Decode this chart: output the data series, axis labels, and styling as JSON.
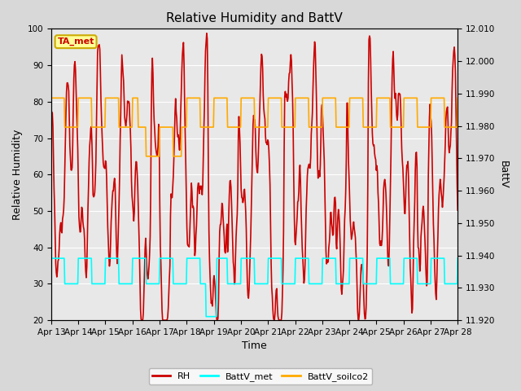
{
  "title": "Relative Humidity and BattV",
  "xlabel": "Time",
  "ylabel_left": "Relative Humidity",
  "ylabel_right": "BattV",
  "ylim_left": [
    20,
    100
  ],
  "ylim_right": [
    11.92,
    12.01
  ],
  "yticks_left": [
    20,
    30,
    40,
    50,
    60,
    70,
    80,
    90,
    100
  ],
  "yticks_right": [
    11.92,
    11.93,
    11.94,
    11.95,
    11.96,
    11.97,
    11.98,
    11.99,
    12.0,
    12.01
  ],
  "bg_color": "#d8d8d8",
  "plot_bg_color": "#e8e8e8",
  "annotation_text": "TA_met",
  "annotation_bg": "#ffff99",
  "annotation_border": "#ccaa00",
  "annotation_text_color": "#cc0000",
  "rh_color": "#cc0000",
  "battv_met_color": "#00ffff",
  "battv_soilco2_color": "#ffaa00",
  "legend_rh": "RH",
  "legend_battv_met": "BattV_met",
  "legend_battv_soilco2": "BattV_soilco2",
  "rh_linewidth": 1.2,
  "battv_linewidth": 1.2,
  "date_labels": [
    "Apr 13",
    "Apr 14",
    "Apr 15",
    "Apr 16",
    "Apr 17",
    "Apr 18",
    "Apr 19",
    "Apr 20",
    "Apr 21",
    "Apr 22",
    "Apr 23",
    "Apr 24",
    "Apr 25",
    "Apr 26",
    "Apr 27",
    "Apr 28"
  ],
  "n_days": 15,
  "rh_seed": 42,
  "title_fontsize": 11,
  "axis_fontsize": 9,
  "tick_fontsize": 7.5,
  "legend_fontsize": 8
}
